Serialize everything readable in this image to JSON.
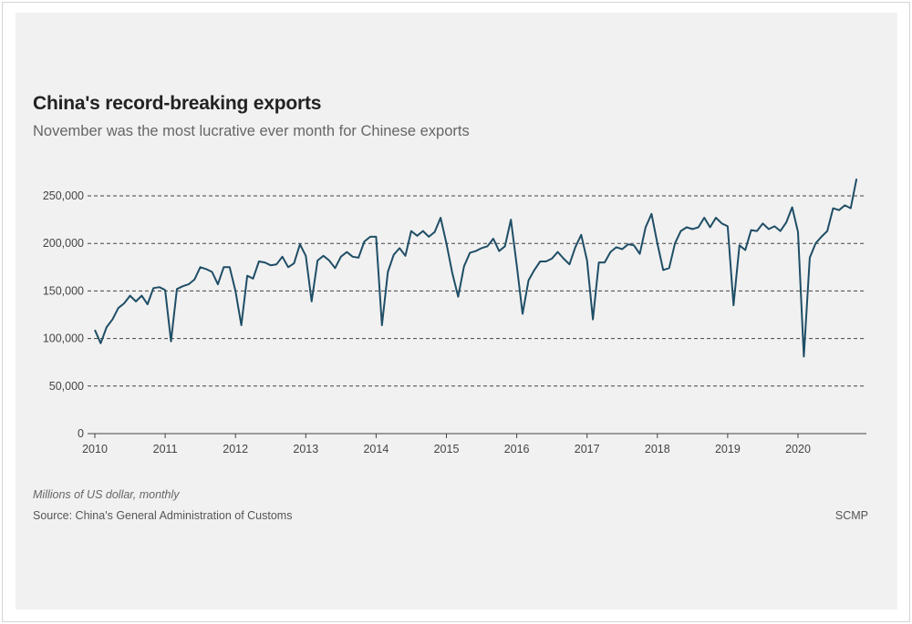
{
  "chart_data": {
    "type": "line",
    "title": "China's record-breaking exports",
    "subtitle": "November was the most lucrative ever month for Chinese exports",
    "note": "Millions of US dollar, monthly",
    "source": "Source: China's General Administration of Customs",
    "brand": "SCMP",
    "x_start": "2010-01",
    "x_frequency": "monthly",
    "xlim": [
      2010,
      2020.92
    ],
    "ylim": [
      0,
      270000
    ],
    "grid": "horizontal-dashed",
    "line_color": "#1f4e66",
    "x_ticks": [
      "2010",
      "2011",
      "2012",
      "2013",
      "2014",
      "2015",
      "2016",
      "2017",
      "2018",
      "2019",
      "2020"
    ],
    "y_ticks": [
      0,
      50000,
      100000,
      150000,
      200000,
      250000
    ],
    "y_tick_labels": [
      "0",
      "50,000",
      "100,000",
      "150,000",
      "200,000",
      "250,000"
    ],
    "values": [
      109000,
      95000,
      112000,
      120000,
      132000,
      137000,
      145000,
      139000,
      145000,
      136000,
      153000,
      154000,
      151000,
      97000,
      152000,
      155000,
      157000,
      162000,
      175000,
      173000,
      170000,
      157000,
      175000,
      175000,
      150000,
      114000,
      166000,
      163000,
      181000,
      180000,
      177000,
      178000,
      186000,
      175000,
      179000,
      199000,
      187000,
      139000,
      182000,
      187000,
      182000,
      174000,
      186000,
      191000,
      186000,
      185000,
      202000,
      207000,
      207000,
      114000,
      170000,
      188000,
      195000,
      187000,
      213000,
      208000,
      213000,
      207000,
      212000,
      227000,
      200000,
      169000,
      144000,
      176000,
      190000,
      192000,
      195000,
      197000,
      205000,
      192000,
      197000,
      225000,
      177000,
      126000,
      161000,
      172000,
      181000,
      181000,
      184000,
      191000,
      184000,
      178000,
      196000,
      209000,
      182000,
      120000,
      180000,
      180000,
      191000,
      196000,
      194000,
      199000,
      198000,
      189000,
      217000,
      231000,
      200000,
      172000,
      174000,
      200000,
      213000,
      217000,
      215000,
      217000,
      227000,
      217000,
      227000,
      221000,
      218000,
      135000,
      198000,
      193000,
      214000,
      213000,
      221000,
      215000,
      218000,
      213000,
      222000,
      238000,
      212000,
      81000,
      185000,
      200000,
      207000,
      213000,
      237000,
      235000,
      240000,
      237000,
      268000
    ]
  }
}
